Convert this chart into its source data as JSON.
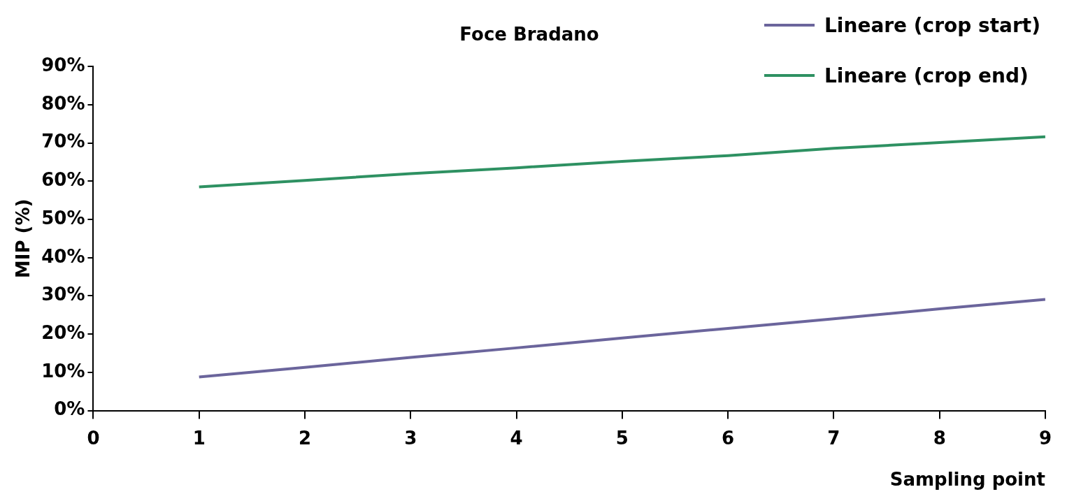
{
  "chart_data": {
    "type": "line",
    "title": "Foce Bradano",
    "xlabel": "Sampling point",
    "ylabel": "MIP (%)",
    "x": [
      1,
      2,
      3,
      4,
      5,
      6,
      7,
      8,
      9
    ],
    "series": [
      {
        "name": "Lineare (crop start)",
        "color": "#6b659c",
        "values": [
          8.8,
          11.3,
          13.9,
          16.4,
          19.0,
          21.5,
          24.0,
          26.6,
          29.1
        ]
      },
      {
        "name": "Lineare (crop end)",
        "color": "#2e9162",
        "values": [
          58.5,
          60.2,
          62.0,
          63.5,
          65.2,
          66.7,
          68.6,
          70.1,
          71.6
        ]
      }
    ],
    "xlim": [
      0,
      9
    ],
    "xticks": [
      0,
      1,
      2,
      3,
      4,
      5,
      6,
      7,
      8,
      9
    ],
    "ylim": [
      0,
      90
    ],
    "yticks": [
      {
        "value": 0,
        "label": "0%"
      },
      {
        "value": 10,
        "label": "10%"
      },
      {
        "value": 20,
        "label": "20%"
      },
      {
        "value": 30,
        "label": "30%"
      },
      {
        "value": 40,
        "label": "40%"
      },
      {
        "value": 50,
        "label": "50%"
      },
      {
        "value": 60,
        "label": "60%"
      },
      {
        "value": 70,
        "label": "70%"
      },
      {
        "value": 80,
        "label": "80%"
      },
      {
        "value": 90,
        "label": "90%"
      }
    ],
    "grid": false,
    "legend": "top right",
    "marker": "none",
    "line_style": "solid"
  }
}
